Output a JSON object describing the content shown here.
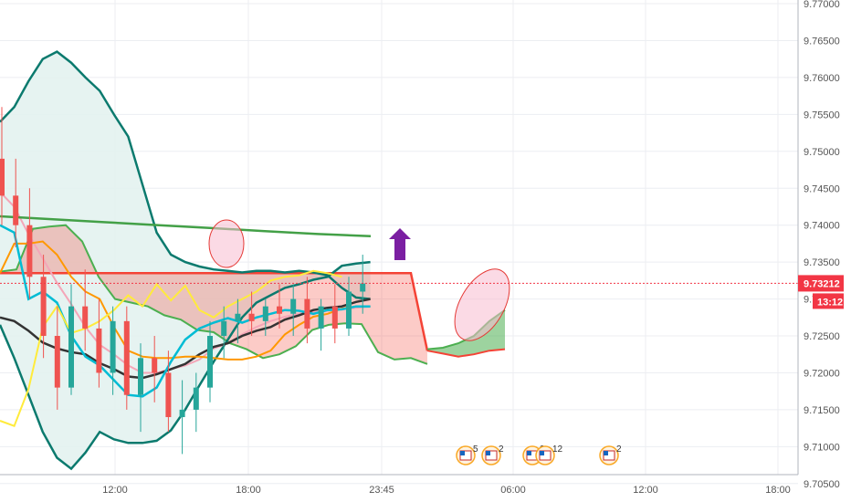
{
  "chart_data": {
    "type": "candlestick",
    "x_ticks": [
      "12:00",
      "18:00",
      "23:45",
      "06:00",
      "12:00",
      "18:00"
    ],
    "y_ticks": [
      "9.77000",
      "9.76500",
      "9.76000",
      "9.75500",
      "9.75000",
      "9.74500",
      "9.74000",
      "9.73500",
      "9.73000",
      "9.72500",
      "9.72000",
      "9.71500",
      "9.71000",
      "9.70500"
    ],
    "ylim": [
      9.7025,
      9.7705
    ],
    "current_price": {
      "label": "9.73212",
      "value": 9.73212,
      "color": "#f23645"
    },
    "countdown": {
      "label": "13:12",
      "color": "#f23645"
    },
    "grid": true,
    "colors": {
      "up": "#26a69a",
      "down": "#ef5350",
      "bollinger": "#0b7a6e",
      "bollinger_fill": "#e3f2ef",
      "cloud_bull": "#4caf50",
      "cloud_bear": "#f44336",
      "tenkan": "#00bcd4",
      "kijun": "#ff9800",
      "lagging": "#ffeb3b",
      "ma_dark": "#333333",
      "ma_pink": "#f4a6b8",
      "ma_green": "#43a047",
      "ma_red": "#e53935",
      "arrow": "#7b1fa2"
    },
    "events": [
      {
        "label": "5",
        "icon": "us-flag-icon"
      },
      {
        "label": "2",
        "icon": "us-flag-icon"
      },
      {
        "label": "2",
        "icon": "us-flag-icon"
      },
      {
        "label": "12",
        "icon": "us-flag-icon"
      },
      {
        "label": "2",
        "icon": "us-flag-icon"
      }
    ],
    "series": [
      {
        "key": "bb_upper",
        "values": [
          9.754,
          9.756,
          9.7595,
          9.7625,
          9.7635,
          9.762,
          9.76,
          9.7582,
          9.755,
          9.752,
          9.7455,
          9.739,
          9.736,
          9.735,
          9.7344,
          9.734,
          9.7338,
          9.7336,
          9.7338,
          9.7338,
          9.7336,
          9.7338,
          9.7336,
          9.7332,
          9.7315,
          9.7302,
          9.73
        ]
      },
      {
        "key": "bb_lower",
        "values": [
          9.7265,
          9.722,
          9.717,
          9.712,
          9.7085,
          9.707,
          9.7092,
          9.712,
          9.711,
          9.7105,
          9.7105,
          9.7108,
          9.7122,
          9.715,
          9.7183,
          9.7215,
          9.7245,
          9.7275,
          9.7295,
          9.7305,
          9.7315,
          9.732,
          9.7326,
          9.733,
          9.7345,
          9.7348,
          9.735
        ]
      },
      {
        "key": "ma_dark",
        "values": [
          9.7275,
          9.727,
          9.7257,
          9.7241,
          9.7233,
          9.7228,
          9.7225,
          9.7213,
          9.7205,
          9.7195,
          9.7193,
          9.7198,
          9.7205,
          9.7212,
          9.7225,
          9.7235,
          9.724,
          9.725,
          9.7257,
          9.7262,
          9.7272,
          9.7278,
          9.7285,
          9.7288,
          9.729,
          9.7296,
          9.73
        ]
      },
      {
        "key": "ma_pink",
        "values": [
          9.7445,
          9.7425,
          9.7388,
          9.7355,
          9.7322,
          9.7293,
          9.7262,
          9.7238,
          9.7225,
          9.721,
          9.72,
          9.72,
          9.7205,
          9.721,
          9.7218,
          9.7233,
          9.724,
          9.7252,
          9.7262,
          9.727,
          9.7276,
          9.728,
          9.7282,
          9.7284,
          9.7286,
          9.7288,
          9.729
        ]
      },
      {
        "key": "tenkan",
        "values": [
          9.74,
          9.739,
          9.73,
          9.731,
          9.7295,
          9.725,
          9.7222,
          9.721,
          9.719,
          9.717,
          9.7168,
          9.718,
          9.7215,
          9.7245,
          9.726,
          9.7268,
          9.7274,
          9.7268,
          9.7275,
          9.728,
          9.7285,
          9.7284,
          9.728,
          9.7285,
          9.7286,
          9.729,
          9.729
        ]
      },
      {
        "key": "kijun",
        "values": [
          9.7335,
          9.7375,
          9.7375,
          9.7378,
          9.736,
          9.733,
          9.731,
          9.73,
          9.7262,
          9.723,
          9.7222,
          9.722,
          9.722,
          9.7222,
          9.7222,
          9.722,
          9.7218,
          9.7218,
          9.7222,
          9.723,
          9.7252,
          9.7265,
          9.7276,
          9.728,
          9.7287,
          9.729,
          9.729
        ]
      },
      {
        "key": "lagging",
        "values": [
          9.7135,
          9.7128,
          9.7178,
          9.7262,
          9.729,
          9.7254,
          9.726,
          9.727,
          9.7285,
          9.7305,
          9.729,
          9.732,
          9.7298,
          9.7318,
          9.7285,
          9.7275,
          9.729,
          9.73,
          9.731,
          9.7325,
          9.733,
          9.7332,
          9.7338,
          9.7335,
          9.733
        ]
      },
      {
        "key": "ma_green",
        "values": [
          9.7412,
          9.7408,
          9.7404,
          9.74,
          9.7396,
          9.7392,
          9.7388,
          9.7385
        ]
      },
      {
        "key": "cloud_a",
        "values": [
          9.7337,
          9.734,
          9.7395,
          9.7398,
          9.74,
          9.7378,
          9.733,
          9.73,
          9.7295,
          9.729,
          9.7278,
          9.7272,
          9.7258,
          9.7255,
          9.724,
          9.7232,
          9.722,
          9.7225,
          9.7236,
          9.7258,
          9.7265,
          9.7267,
          9.7266,
          9.7228,
          9.7218,
          9.722,
          9.7212
        ]
      },
      {
        "key": "cloud_b",
        "values": [
          9.7335,
          9.7335,
          9.7335,
          9.7335,
          9.7335,
          9.7335,
          9.7335,
          9.7335,
          9.7335,
          9.7335,
          9.7335,
          9.7335,
          9.7335,
          9.7335,
          9.7335,
          9.7335,
          9.7335,
          9.7335,
          9.7335,
          9.7335,
          9.7335,
          9.7335,
          9.7335,
          9.7335,
          9.7335,
          9.7335,
          9.723
        ]
      },
      {
        "key": "cloud_fwd_a",
        "values": [
          9.7232,
          9.7234,
          9.724,
          9.725,
          9.727,
          9.7285
        ]
      },
      {
        "key": "cloud_fwd_b",
        "values": [
          9.723,
          9.7226,
          9.7222,
          9.7225,
          9.723,
          9.7232
        ]
      }
    ],
    "candles": [
      {
        "o": 9.749,
        "h": 9.756,
        "l": 9.74,
        "c": 9.744
      },
      {
        "o": 9.744,
        "h": 9.749,
        "l": 9.737,
        "c": 9.74
      },
      {
        "o": 9.74,
        "h": 9.745,
        "l": 9.73,
        "c": 9.733
      },
      {
        "o": 9.733,
        "h": 9.736,
        "l": 9.722,
        "c": 9.725
      },
      {
        "o": 9.725,
        "h": 9.729,
        "l": 9.715,
        "c": 9.718
      },
      {
        "o": 9.718,
        "h": 9.732,
        "l": 9.717,
        "c": 9.729
      },
      {
        "o": 9.729,
        "h": 9.734,
        "l": 9.723,
        "c": 9.726
      },
      {
        "o": 9.726,
        "h": 9.73,
        "l": 9.718,
        "c": 9.72
      },
      {
        "o": 9.72,
        "h": 9.729,
        "l": 9.717,
        "c": 9.727
      },
      {
        "o": 9.727,
        "h": 9.729,
        "l": 9.715,
        "c": 9.717
      },
      {
        "o": 9.717,
        "h": 9.724,
        "l": 9.712,
        "c": 9.722
      },
      {
        "o": 9.722,
        "h": 9.725,
        "l": 9.716,
        "c": 9.72
      },
      {
        "o": 9.72,
        "h": 9.723,
        "l": 9.712,
        "c": 9.714
      },
      {
        "o": 9.714,
        "h": 9.719,
        "l": 9.709,
        "c": 9.715
      },
      {
        "o": 9.715,
        "h": 9.72,
        "l": 9.712,
        "c": 9.718
      },
      {
        "o": 9.718,
        "h": 9.727,
        "l": 9.716,
        "c": 9.725
      },
      {
        "o": 9.725,
        "h": 9.729,
        "l": 9.722,
        "c": 9.727
      },
      {
        "o": 9.727,
        "h": 9.73,
        "l": 9.724,
        "c": 9.728
      },
      {
        "o": 9.728,
        "h": 9.731,
        "l": 9.725,
        "c": 9.727
      },
      {
        "o": 9.727,
        "h": 9.73,
        "l": 9.725,
        "c": 9.729
      },
      {
        "o": 9.729,
        "h": 9.732,
        "l": 9.726,
        "c": 9.728
      },
      {
        "o": 9.728,
        "h": 9.732,
        "l": 9.725,
        "c": 9.73
      },
      {
        "o": 9.73,
        "h": 9.733,
        "l": 9.724,
        "c": 9.726
      },
      {
        "o": 9.726,
        "h": 9.73,
        "l": 9.723,
        "c": 9.729
      },
      {
        "o": 9.729,
        "h": 9.732,
        "l": 9.724,
        "c": 9.726
      },
      {
        "o": 9.726,
        "h": 9.733,
        "l": 9.725,
        "c": 9.731
      },
      {
        "o": 9.731,
        "h": 9.736,
        "l": 9.728,
        "c": 9.7321
      }
    ]
  }
}
